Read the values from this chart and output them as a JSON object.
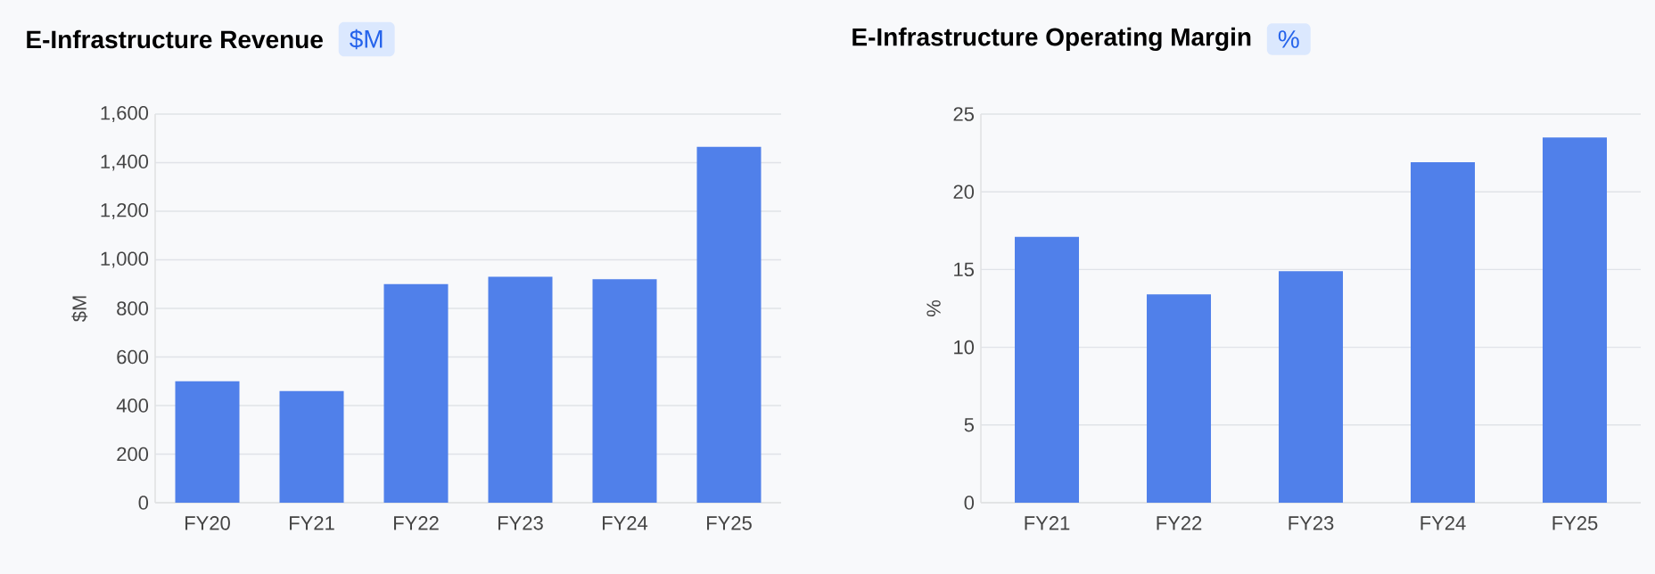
{
  "chart_data": [
    {
      "type": "bar",
      "title": "E-Infrastructure Revenue",
      "subtitle": "$M",
      "ylabel": "$M",
      "categories": [
        "FY20",
        "FY21",
        "FY22",
        "FY23",
        "FY24",
        "FY25"
      ],
      "values": [
        500,
        460,
        900,
        930,
        920,
        1465
      ],
      "color": "#5080ea",
      "ylim": [
        0,
        1600
      ],
      "yticks": [
        0,
        200,
        400,
        600,
        800,
        {
          "value": 1000,
          "label": "1,000"
        },
        {
          "value": 1200,
          "label": "1,200"
        },
        {
          "value": 1400,
          "label": "1,400"
        },
        {
          "value": 1600,
          "label": "1,600"
        }
      ],
      "grid": "y"
    },
    {
      "type": "bar",
      "title": "E-Infrastructure Operating Margin",
      "subtitle": "%",
      "ylabel": "%",
      "categories": [
        "FY21",
        "FY22",
        "FY23",
        "FY24",
        "FY25"
      ],
      "values": [
        17.1,
        13.4,
        14.9,
        21.9,
        23.5
      ],
      "color": "#5080ea",
      "ylim": [
        0,
        25
      ],
      "yticks": [
        0,
        5,
        10,
        15,
        20,
        25
      ],
      "grid": "y"
    }
  ]
}
